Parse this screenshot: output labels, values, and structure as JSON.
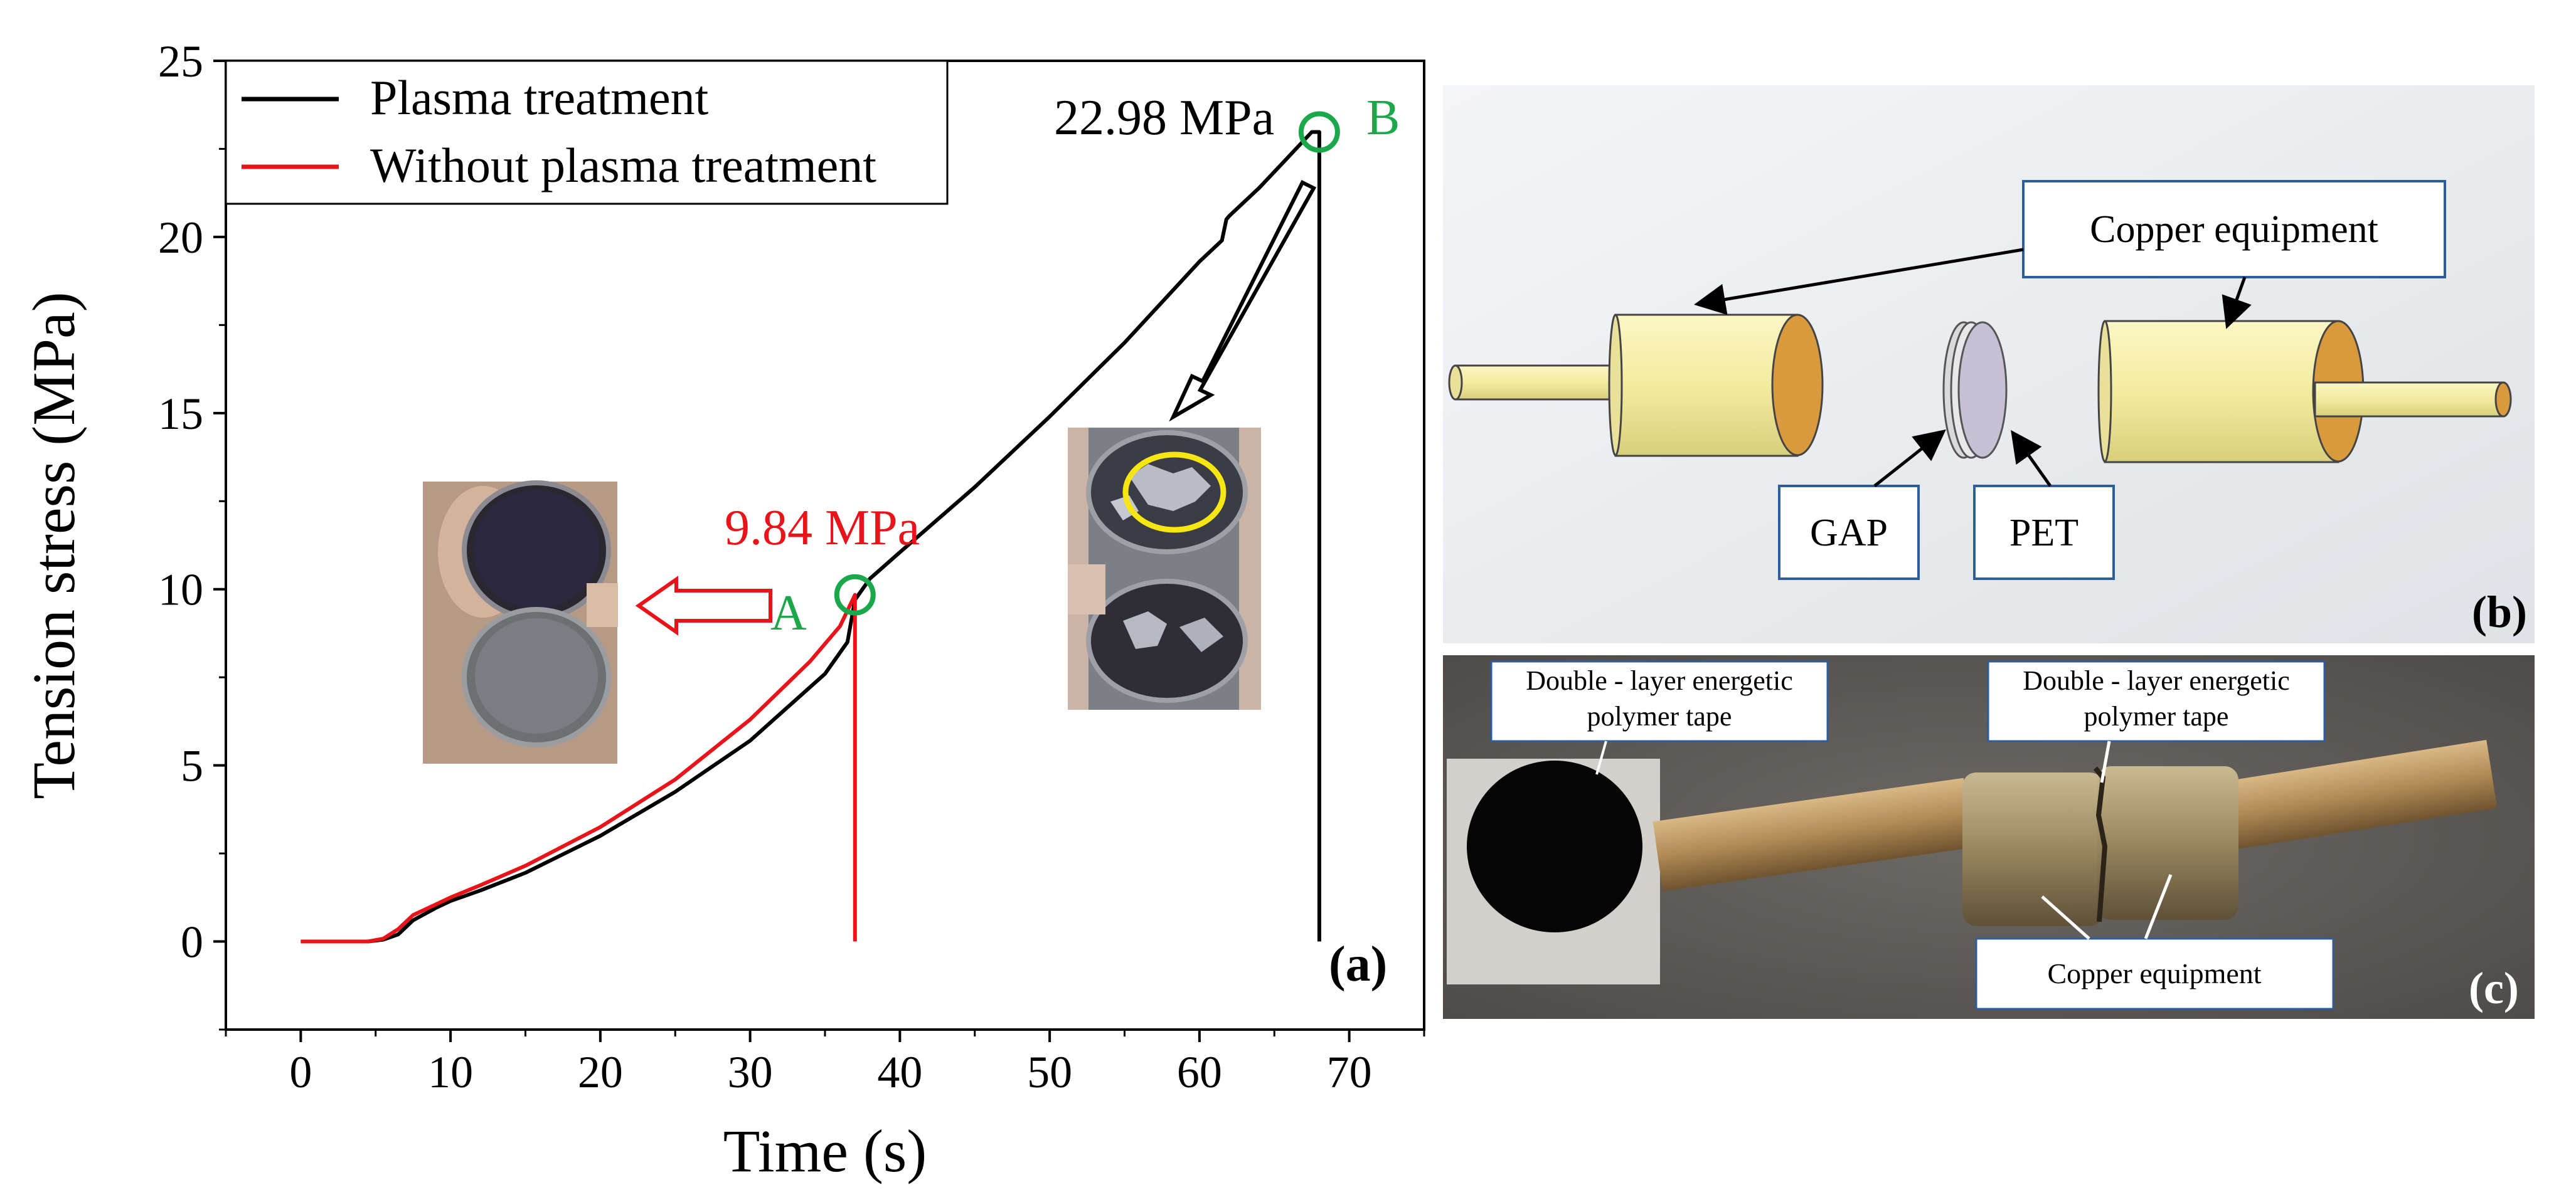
{
  "chart_data": {
    "type": "line",
    "xlabel": "Time (s)",
    "ylabel": "Tension stress (MPa)",
    "xlim": [
      -5,
      75
    ],
    "ylim": [
      -2.5,
      25
    ],
    "xticks": [
      0,
      10,
      20,
      30,
      40,
      50,
      60,
      70
    ],
    "yticks": [
      0,
      5,
      10,
      15,
      20,
      25
    ],
    "grid": false,
    "legend_position": "top-left",
    "panel_label": "(a)",
    "series": [
      {
        "name": "Plasma treatment",
        "color": "#000000",
        "points": [
          [
            0,
            0
          ],
          [
            4.5,
            0
          ],
          [
            5.5,
            0.05
          ],
          [
            6.5,
            0.2
          ],
          [
            7.5,
            0.6
          ],
          [
            9,
            0.95
          ],
          [
            10,
            1.15
          ],
          [
            12,
            1.45
          ],
          [
            15,
            1.95
          ],
          [
            20,
            3.0
          ],
          [
            25,
            4.25
          ],
          [
            30,
            5.7
          ],
          [
            35,
            7.6
          ],
          [
            36.5,
            8.5
          ],
          [
            37,
            9.7
          ],
          [
            38,
            10.3
          ],
          [
            40,
            11.05
          ],
          [
            45,
            12.9
          ],
          [
            50,
            14.9
          ],
          [
            55,
            17.0
          ],
          [
            60,
            19.3
          ],
          [
            61.5,
            19.9
          ],
          [
            61.8,
            20.5
          ],
          [
            62,
            20.6
          ],
          [
            64,
            21.4
          ],
          [
            66,
            22.3
          ],
          [
            67.5,
            22.98
          ],
          [
            68,
            22.98
          ],
          [
            68,
            0
          ]
        ]
      },
      {
        "name": "Without plasma treatment",
        "color": "#e8141a",
        "points": [
          [
            0,
            0
          ],
          [
            4.5,
            0
          ],
          [
            5.5,
            0.08
          ],
          [
            6.5,
            0.35
          ],
          [
            7.5,
            0.75
          ],
          [
            9,
            1.05
          ],
          [
            10,
            1.25
          ],
          [
            12,
            1.6
          ],
          [
            15,
            2.15
          ],
          [
            20,
            3.25
          ],
          [
            25,
            4.6
          ],
          [
            30,
            6.3
          ],
          [
            34,
            7.95
          ],
          [
            36,
            8.95
          ],
          [
            37,
            9.84
          ],
          [
            37,
            0
          ]
        ]
      }
    ],
    "annotations": {
      "point_a": {
        "x": 37,
        "y": 9.84,
        "letter": "A",
        "value_label": "9.84 MPa"
      },
      "point_b": {
        "x": 68,
        "y": 22.98,
        "letter": "B",
        "value_label": "22.98 MPa"
      }
    }
  },
  "diagram_b": {
    "panel_label": "(b)",
    "copper_label": "Copper equipment",
    "gap_label": "GAP",
    "pet_label": "PET"
  },
  "photo_c": {
    "panel_label": "(c)",
    "tape_label_left_1": "Double - layer energetic",
    "tape_label_left_2": "polymer tape",
    "tape_label_right_1": "Double - layer energetic",
    "tape_label_right_2": "polymer tape",
    "copper_label": "Copper equipment"
  },
  "colors": {
    "marker_green": "#1ba84a",
    "annotation_red": "#e8141a",
    "copper_light": "#f3ec9f",
    "copper_face": "#d99a3e",
    "pet_disc": "#c7bfd3",
    "label_box_border": "#2e5d9c"
  }
}
